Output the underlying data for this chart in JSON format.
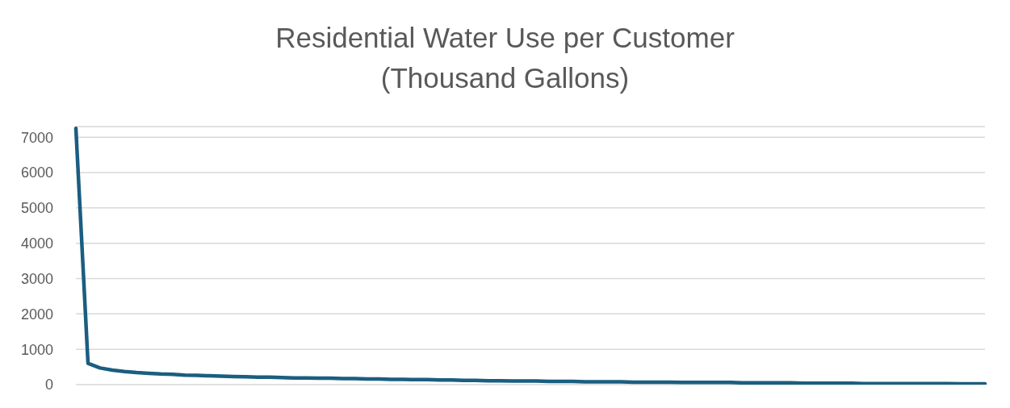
{
  "chart_data": {
    "type": "line",
    "title": "Residential Water Use per Customer\n(Thousand Gallons)",
    "categories": [
      null,
      null,
      null,
      null,
      null,
      null,
      null,
      null,
      null,
      null,
      null,
      null,
      null,
      null,
      null,
      null,
      null,
      null,
      null,
      null,
      null,
      null,
      null,
      null,
      null,
      null,
      null,
      null,
      null,
      null,
      null,
      null,
      null,
      null,
      null,
      null,
      null,
      null,
      null,
      null,
      null,
      null,
      null,
      null,
      null,
      null,
      null,
      null,
      null,
      null,
      null,
      null,
      null,
      null,
      null,
      null,
      null,
      null,
      null,
      null,
      null,
      null,
      null,
      null,
      null,
      null,
      null,
      null,
      null,
      null,
      null,
      null,
      null,
      null,
      null,
      null
    ],
    "series": [
      {
        "color": "#1a5e80",
        "values": [
          7250,
          600,
          470,
          410,
          370,
          340,
          320,
          300,
          290,
          270,
          260,
          250,
          240,
          230,
          220,
          210,
          210,
          200,
          190,
          190,
          180,
          180,
          170,
          170,
          160,
          160,
          150,
          150,
          140,
          140,
          130,
          130,
          120,
          120,
          110,
          110,
          100,
          100,
          100,
          90,
          90,
          90,
          80,
          80,
          80,
          80,
          70,
          70,
          70,
          70,
          60,
          60,
          60,
          60,
          60,
          50,
          50,
          50,
          50,
          50,
          40,
          40,
          40,
          40,
          40,
          30,
          30,
          30,
          30,
          30,
          30,
          30,
          30,
          20,
          20,
          20
        ]
      }
    ],
    "ylim": [
      0,
      7300
    ],
    "yticks": [
      0,
      1000,
      2000,
      3000,
      4000,
      5000,
      6000,
      7000
    ],
    "grid": "y",
    "legend": false,
    "tick_labels": "y",
    "marker": "none",
    "line_style": "solid"
  }
}
